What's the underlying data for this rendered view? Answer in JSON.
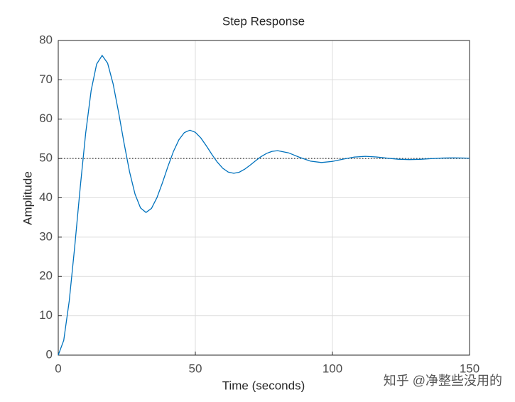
{
  "chart_data": {
    "type": "line",
    "title": "Step Response",
    "x_label": "Time (seconds)",
    "y_label": "Amplitude",
    "x": [
      0,
      2,
      4,
      6,
      8,
      10,
      12,
      14,
      16,
      18,
      20,
      22,
      24,
      26,
      28,
      30,
      32,
      34,
      36,
      38,
      40,
      42,
      44,
      46,
      48,
      50,
      52,
      54,
      56,
      58,
      60,
      62,
      64,
      66,
      68,
      70,
      72,
      74,
      76,
      78,
      80,
      84,
      88,
      92,
      96,
      100,
      104,
      108,
      112,
      116,
      120,
      124,
      128,
      132,
      136,
      140,
      144,
      148,
      150
    ],
    "series": [
      {
        "name": "Step response",
        "color": "#0072bd",
        "values": [
          0,
          3.76,
          13.73,
          27.52,
          42.55,
          56.43,
          67.29,
          74.0,
          76.2,
          74.23,
          69.0,
          61.77,
          53.9,
          46.63,
          40.94,
          37.43,
          36.27,
          37.31,
          40.05,
          43.83,
          47.96,
          51.77,
          54.75,
          56.59,
          57.19,
          56.65,
          55.22,
          53.23,
          51.07,
          49.08,
          47.51,
          46.55,
          46.23,
          46.51,
          47.27,
          48.3,
          49.44,
          50.48,
          51.3,
          51.81,
          51.98,
          51.43,
          50.29,
          49.32,
          48.97,
          49.25,
          49.85,
          50.36,
          50.54,
          50.39,
          50.08,
          49.81,
          49.72,
          49.79,
          49.96,
          50.1,
          50.15,
          50.11,
          50.07
        ]
      }
    ],
    "steady_state": 50,
    "xlim": [
      0,
      150
    ],
    "xticks": [
      0,
      50,
      100,
      150
    ],
    "ylim": [
      0,
      80
    ],
    "yticks": [
      0,
      10,
      20,
      30,
      40,
      50,
      60,
      70,
      80
    ],
    "grid": true,
    "watermark": "知乎 @净整些没用的"
  }
}
